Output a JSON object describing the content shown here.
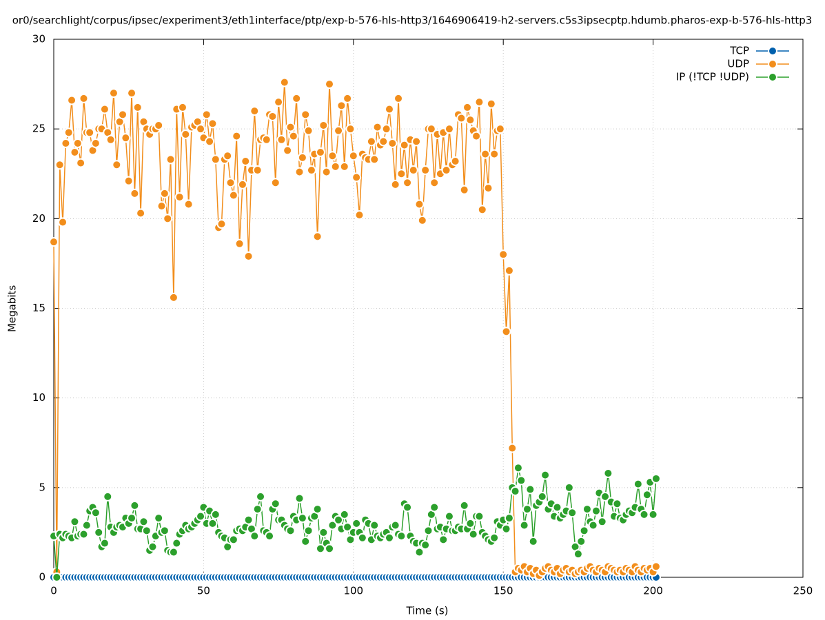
{
  "chart_data": {
    "type": "line",
    "title": "or0/searchlight/corpus/ipsec/experiment3/eth1interface/ptp/exp-b-576-hls-http3/1646906419-h2-servers.c5s3ipsecptp.hdumb.pharos-exp-b-576-hls-http3",
    "x_label": "Time (s)",
    "y_label": "Megabits",
    "xlim": [
      0,
      250
    ],
    "ylim": [
      0,
      30
    ],
    "xticks": [
      0,
      50,
      100,
      150,
      200,
      250
    ],
    "yticks": [
      0,
      5,
      10,
      15,
      20,
      25,
      30
    ],
    "grid": true,
    "legend": "top-right",
    "x": [
      0,
      1,
      2,
      3,
      4,
      5,
      6,
      7,
      8,
      9,
      10,
      11,
      12,
      13,
      14,
      15,
      16,
      17,
      18,
      19,
      20,
      21,
      22,
      23,
      24,
      25,
      26,
      27,
      28,
      29,
      30,
      31,
      32,
      33,
      34,
      35,
      36,
      37,
      38,
      39,
      40,
      41,
      42,
      43,
      44,
      45,
      46,
      47,
      48,
      49,
      50,
      51,
      52,
      53,
      54,
      55,
      56,
      57,
      58,
      59,
      60,
      61,
      62,
      63,
      64,
      65,
      66,
      67,
      68,
      69,
      70,
      71,
      72,
      73,
      74,
      75,
      76,
      77,
      78,
      79,
      80,
      81,
      82,
      83,
      84,
      85,
      86,
      87,
      88,
      89,
      90,
      91,
      92,
      93,
      94,
      95,
      96,
      97,
      98,
      99,
      100,
      101,
      102,
      103,
      104,
      105,
      106,
      107,
      108,
      109,
      110,
      111,
      112,
      113,
      114,
      115,
      116,
      117,
      118,
      119,
      120,
      121,
      122,
      123,
      124,
      125,
      126,
      127,
      128,
      129,
      130,
      131,
      132,
      133,
      134,
      135,
      136,
      137,
      138,
      139,
      140,
      141,
      142,
      143,
      144,
      145,
      146,
      147,
      148,
      149,
      150,
      151,
      152,
      153,
      154,
      155,
      156,
      157,
      158,
      159,
      160,
      161,
      162,
      163,
      164,
      165,
      166,
      167,
      168,
      169,
      170,
      171,
      172,
      173,
      174,
      175,
      176,
      177,
      178,
      179,
      180,
      181,
      182,
      183,
      184,
      185,
      186,
      187,
      188,
      189,
      190,
      191,
      192,
      193,
      194,
      195,
      196,
      197,
      198,
      199,
      200,
      201
    ],
    "series": [
      {
        "name": "TCP",
        "color": "#0060ad",
        "values": [
          0,
          0,
          0,
          0,
          0,
          0,
          0,
          0,
          0,
          0,
          0,
          0,
          0,
          0,
          0,
          0,
          0,
          0,
          0,
          0,
          0,
          0,
          0,
          0,
          0,
          0,
          0,
          0,
          0,
          0,
          0,
          0,
          0,
          0,
          0,
          0,
          0,
          0,
          0,
          0,
          0,
          0,
          0,
          0,
          0,
          0,
          0,
          0,
          0,
          0,
          0,
          0,
          0,
          0,
          0,
          0,
          0,
          0,
          0,
          0,
          0,
          0,
          0,
          0,
          0,
          0,
          0,
          0,
          0,
          0,
          0,
          0,
          0,
          0,
          0,
          0,
          0,
          0,
          0,
          0,
          0,
          0,
          0,
          0,
          0,
          0,
          0,
          0,
          0,
          0,
          0,
          0,
          0,
          0,
          0,
          0,
          0,
          0,
          0,
          0,
          0,
          0,
          0,
          0,
          0,
          0,
          0,
          0,
          0,
          0,
          0,
          0,
          0,
          0,
          0,
          0,
          0,
          0,
          0,
          0,
          0,
          0,
          0,
          0,
          0,
          0,
          0,
          0,
          0,
          0,
          0,
          0,
          0,
          0,
          0,
          0,
          0,
          0,
          0,
          0,
          0,
          0,
          0,
          0,
          0,
          0,
          0,
          0,
          0,
          0,
          0,
          0,
          0,
          0,
          0,
          0,
          0,
          0,
          0,
          0,
          0,
          0,
          0,
          0,
          0,
          0,
          0,
          0,
          0,
          0,
          0,
          0,
          0,
          0,
          0,
          0,
          0,
          0,
          0,
          0,
          0,
          0,
          0,
          0,
          0,
          0,
          0,
          0,
          0,
          0,
          0,
          0,
          0,
          0,
          0,
          0,
          0,
          0,
          0,
          0,
          0,
          0
        ]
      },
      {
        "name": "UDP",
        "color": "#f28e1c",
        "values": [
          18.7,
          0.3,
          23,
          19.8,
          24.2,
          24.8,
          26.6,
          23.7,
          24.2,
          23.1,
          26.7,
          24.8,
          24.8,
          23.8,
          24.2,
          25,
          25,
          26.1,
          24.8,
          24.4,
          27,
          23,
          25.4,
          25.8,
          24.5,
          22.1,
          27,
          21.4,
          26.2,
          20.3,
          25.4,
          25,
          24.7,
          25,
          25,
          25.2,
          20.7,
          21.4,
          20,
          23.3,
          15.6,
          26.1,
          21.2,
          26.2,
          24.7,
          20.8,
          25.1,
          25.2,
          25.4,
          25,
          24.5,
          25.8,
          24.3,
          25.3,
          23.3,
          19.5,
          19.7,
          23.3,
          23.5,
          22,
          21.3,
          24.6,
          18.6,
          21.9,
          23.2,
          17.9,
          22.7,
          26,
          22.7,
          24.4,
          24.5,
          24.4,
          25.8,
          25.7,
          22,
          26.5,
          24.4,
          27.6,
          23.8,
          25.1,
          24.6,
          26.7,
          22.6,
          23.4,
          25.8,
          24.9,
          22.7,
          23.6,
          19,
          23.7,
          25.2,
          22.6,
          27.5,
          23.5,
          22.9,
          24.9,
          26.3,
          22.9,
          26.7,
          25,
          23.5,
          22.3,
          20.2,
          23.6,
          23.4,
          23.3,
          24.3,
          23.3,
          25.1,
          24.1,
          24.3,
          25,
          26.1,
          24.2,
          21.9,
          26.7,
          22.5,
          24.1,
          22,
          24.4,
          22.7,
          24.3,
          20.8,
          19.9,
          22.7,
          25,
          25,
          22,
          24.7,
          22.5,
          24.8,
          22.7,
          25,
          23,
          23.2,
          25.8,
          25.6,
          21.6,
          26.2,
          25.5,
          24.9,
          24.6,
          26.5,
          20.5,
          23.6,
          21.7,
          26.4,
          23.6,
          24.9,
          25,
          18,
          13.7,
          17.1,
          7.2,
          0.3,
          0.5,
          0.4,
          0.6,
          0.3,
          0.5,
          0.2,
          0.4,
          0.1,
          0.3,
          0.5,
          0.6,
          0.4,
          0.3,
          0.5,
          0.2,
          0.4,
          0.5,
          0.3,
          0.4,
          0.2,
          0.3,
          0.4,
          0.3,
          0.5,
          0.6,
          0.4,
          0.3,
          0.5,
          0.4,
          0.3,
          0.6,
          0.5,
          0.4,
          0.3,
          0.4,
          0.3,
          0.5,
          0.4,
          0.3,
          0.6,
          0.4,
          0.3,
          0.5,
          0.4,
          0.5,
          0.3,
          0.6
        ]
      },
      {
        "name": "IP (!TCP  !UDP)",
        "color": "#2ca02c",
        "values": [
          2.3,
          0,
          2.4,
          2.2,
          2.4,
          2.3,
          2.2,
          3.1,
          2.3,
          2.4,
          2.4,
          2.9,
          3.7,
          3.9,
          3.6,
          2.5,
          1.7,
          1.9,
          4.5,
          2.8,
          2.5,
          2.8,
          2.9,
          2.8,
          3.3,
          3,
          3.3,
          4,
          2.7,
          2.7,
          3.1,
          2.6,
          1.5,
          1.7,
          2.3,
          3.3,
          2.5,
          2.6,
          1.5,
          1.4,
          1.4,
          1.9,
          2.4,
          2.6,
          2.9,
          2.7,
          2.8,
          3,
          3.2,
          3.4,
          3.9,
          3,
          3.7,
          3,
          3.5,
          2.5,
          2.3,
          2.2,
          1.7,
          2.1,
          2.1,
          2.6,
          2.7,
          2.6,
          2.8,
          3.2,
          2.7,
          2.3,
          3.8,
          4.5,
          2.6,
          2.5,
          2.3,
          3.8,
          4.1,
          3.2,
          3.2,
          2.9,
          2.7,
          2.6,
          3.4,
          3.2,
          4.4,
          3.3,
          2,
          2.6,
          3.3,
          3.4,
          3.8,
          1.6,
          2.5,
          1.9,
          1.6,
          2.9,
          3.4,
          3.2,
          2.7,
          3.5,
          2.8,
          2.1,
          2.5,
          3,
          2.5,
          2.2,
          3.2,
          3,
          2.1,
          2.9,
          2.3,
          2.2,
          2.4,
          2.5,
          2.2,
          2.8,
          2.9,
          2.4,
          2.3,
          4.1,
          3.9,
          2.3,
          2,
          1.9,
          1.4,
          1.9,
          1.8,
          2.6,
          3.5,
          3.9,
          2.7,
          2.8,
          2.1,
          2.7,
          3.4,
          2.6,
          2.6,
          2.8,
          2.7,
          4,
          2.7,
          3,
          2.4,
          3.4,
          3.4,
          2.5,
          2.3,
          2.1,
          2,
          2.2,
          3.1,
          2.9,
          3.2,
          2.7,
          3.3,
          5,
          4.8,
          6.1,
          5.4,
          2.9,
          3.8,
          4.9,
          2,
          4,
          4.2,
          4.5,
          5.7,
          3.8,
          4.1,
          3.4,
          3.9,
          3.3,
          3.5,
          3.7,
          5,
          3.6,
          1.7,
          1.3,
          2,
          2.6,
          3.8,
          3.1,
          2.9,
          3.7,
          4.7,
          3.1,
          4.5,
          5.8,
          4.2,
          3.4,
          4.1,
          3.3,
          3.2,
          3.5,
          3.7,
          3.6,
          3.9,
          5.2,
          3.8,
          3.5,
          4.6,
          5.3,
          3.5,
          5.5
        ]
      }
    ]
  }
}
